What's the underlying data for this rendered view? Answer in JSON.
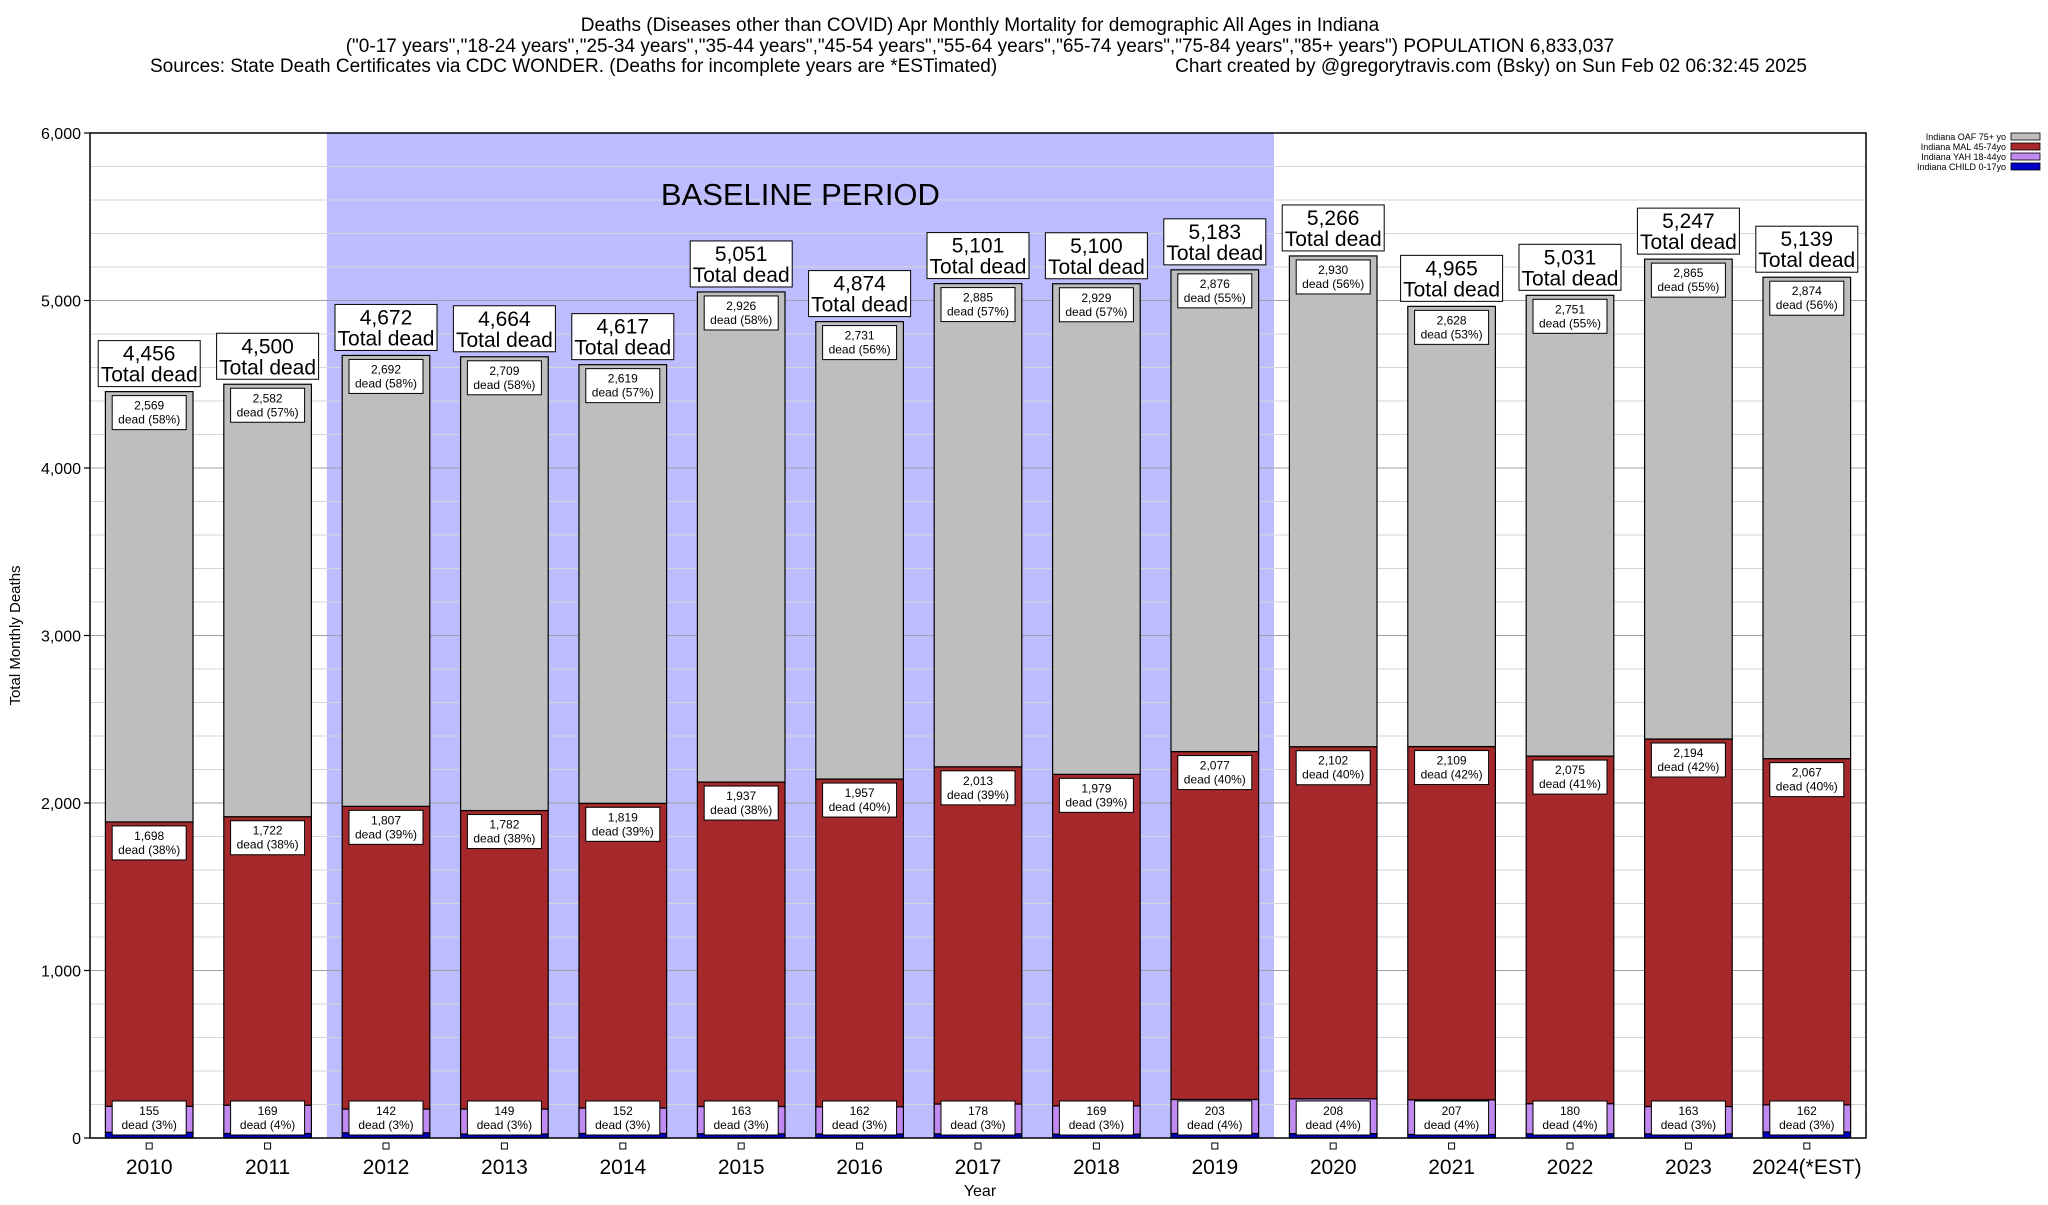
{
  "chart_data": {
    "type": "bar",
    "stacked": true,
    "title_lines": [
      "Deaths (Diseases other than COVID) Apr Monthly Mortality for demographic All Ages in Indiana",
      "(\"0-17 years\",\"18-24 years\",\"25-34 years\",\"35-44 years\",\"45-54 years\",\"55-64 years\",\"65-74 years\",\"75-84 years\",\"85+ years\") POPULATION 6,833,037",
      "Sources: State Death Certificates via CDC WONDER. (Deaths for incomplete years are *ESTimated)"
    ],
    "credit": "Chart created by @gregorytravis.com (Bsky) on Sun Feb 02 06:32:45 2025",
    "xlabel": "Year",
    "ylabel": "Total Monthly Deaths",
    "ylim": [
      0,
      6000
    ],
    "y_ticks": [
      "0",
      "1,000",
      "2,000",
      "3,000",
      "4,000",
      "5,000",
      "6,000"
    ],
    "grid": true,
    "legend_position": "top-right",
    "baseline_label": "BASELINE PERIOD",
    "baseline_range": [
      "2012",
      "2019"
    ],
    "total_label_suffix": "Total dead",
    "categories": [
      "2010",
      "2011",
      "2012",
      "2013",
      "2014",
      "2015",
      "2016",
      "2017",
      "2018",
      "2019",
      "2020",
      "2021",
      "2022",
      "2023",
      "2024(*EST)"
    ],
    "totals": [
      "4,456",
      "4,500",
      "4,672",
      "4,664",
      "4,617",
      "5,051",
      "4,874",
      "5,101",
      "5,100",
      "5,183",
      "5,266",
      "4,965",
      "5,031",
      "5,247",
      "5,139"
    ],
    "series": [
      {
        "name": "Indiana CHILD 0-17yo",
        "color": "#0000c8",
        "values": [
          34,
          27,
          31,
          24,
          27,
          25,
          24,
          25,
          23,
          27,
          26,
          21,
          25,
          25,
          36
        ]
      },
      {
        "name": "Indiana YAH 18-44yo",
        "color": "#c08af0",
        "values": [
          155,
          169,
          142,
          149,
          152,
          163,
          162,
          178,
          169,
          203,
          208,
          207,
          180,
          163,
          162
        ],
        "labels": [
          "155\ndead (3%)",
          "169\ndead (4%)",
          "142\ndead (3%)",
          "149\ndead (3%)",
          "152\ndead (3%)",
          "163\ndead (3%)",
          "162\ndead (3%)",
          "178\ndead (3%)",
          "169\ndead (3%)",
          "203\ndead (4%)",
          "208\ndead (4%)",
          "207\ndead (4%)",
          "180\ndead (4%)",
          "163\ndead (3%)",
          "162\ndead (3%)"
        ]
      },
      {
        "name": "Indiana MAL 45-74yo",
        "color": "#a5282a",
        "values": [
          1698,
          1722,
          1807,
          1782,
          1819,
          1937,
          1957,
          2013,
          1979,
          2077,
          2102,
          2109,
          2075,
          2194,
          2067
        ],
        "labels": [
          "1,698\ndead (38%)",
          "1,722\ndead (38%)",
          "1,807\ndead (39%)",
          "1,782\ndead (38%)",
          "1,819\ndead (39%)",
          "1,937\ndead (38%)",
          "1,957\ndead (40%)",
          "2,013\ndead (39%)",
          "1,979\ndead (39%)",
          "2,077\ndead (40%)",
          "2,102\ndead (40%)",
          "2,109\ndead (42%)",
          "2,075\ndead (41%)",
          "2,194\ndead (42%)",
          "2,067\ndead (40%)"
        ]
      },
      {
        "name": "Indiana OAF 75+ yo",
        "color": "#bebebe",
        "values": [
          2569,
          2582,
          2692,
          2709,
          2619,
          2926,
          2731,
          2885,
          2929,
          2876,
          2930,
          2628,
          2751,
          2865,
          2874
        ],
        "labels": [
          "2,569\ndead (58%)",
          "2,582\ndead (57%)",
          "2,692\ndead (58%)",
          "2,709\ndead (58%)",
          "2,619\ndead (57%)",
          "2,926\ndead (58%)",
          "2,731\ndead (56%)",
          "2,885\ndead (57%)",
          "2,929\ndead (57%)",
          "2,876\ndead (55%)",
          "2,930\ndead (56%)",
          "2,628\ndead (53%)",
          "2,751\ndead (55%)",
          "2,865\ndead (55%)",
          "2,874\ndead (56%)"
        ]
      }
    ],
    "legend_order": [
      "Indiana OAF 75+ yo",
      "Indiana MAL 45-74yo",
      "Indiana YAH 18-44yo",
      "Indiana CHILD 0-17yo"
    ]
  }
}
